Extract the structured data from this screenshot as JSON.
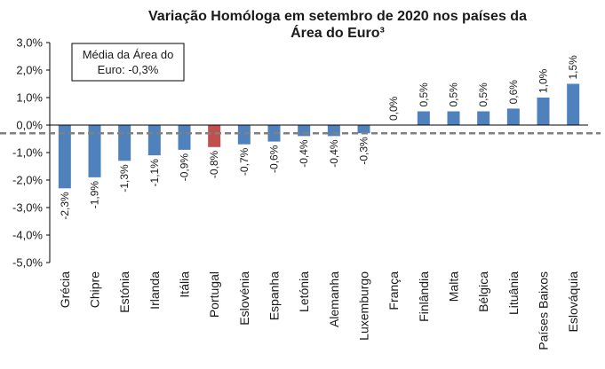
{
  "chart_data": {
    "type": "bar",
    "title_lines": [
      "Variação Homóloga em setembro de 2020 nos países da",
      "Área do Euro³"
    ],
    "categories": [
      "Grécia",
      "Chipre",
      "Estónia",
      "Irlanda",
      "Itália",
      "Portugal",
      "Eslovénia",
      "Espanha",
      "Letónia",
      "Alemanha",
      "Luxemburgo",
      "França",
      "Finlândia",
      "Malta",
      "Bélgica",
      "Lituânia",
      "Países Baixos",
      "Eslováquia"
    ],
    "values": [
      -2.3,
      -1.9,
      -1.3,
      -1.1,
      -0.9,
      -0.8,
      -0.7,
      -0.6,
      -0.4,
      -0.4,
      -0.3,
      0.0,
      0.5,
      0.5,
      0.5,
      0.6,
      1.0,
      1.5
    ],
    "data_labels": [
      "-2,3%",
      "-1,9%",
      "-1,3%",
      "-1,1%",
      "-0,9%",
      "-0,8%",
      "-0,7%",
      "-0,6%",
      "-0,4%",
      "-0,4%",
      "-0,3%",
      "0,0%",
      "0,5%",
      "0,5%",
      "0,5%",
      "0,6%",
      "1,0%",
      "1,5%"
    ],
    "y_ticks": [
      3.0,
      2.0,
      1.0,
      0.0,
      -1.0,
      -2.0,
      -3.0,
      -4.0,
      -5.0
    ],
    "y_tick_labels": [
      "3,0%",
      "2,0%",
      "1,0%",
      "0,0%",
      "-1,0%",
      "-2,0%",
      "-3,0%",
      "-4,0%",
      "-5,0%"
    ],
    "ylim": [
      -5.0,
      3.0
    ],
    "grid": false,
    "reference_line": {
      "value": -0.3,
      "style": "dashed"
    },
    "annotation_lines": [
      "Média da Área do",
      "Euro: -0,3%"
    ],
    "highlight_category": "Portugal",
    "colors": {
      "bar": "#4f81bd",
      "highlight": "#c0504d",
      "reference": "#808080",
      "axis": "#000000"
    }
  }
}
